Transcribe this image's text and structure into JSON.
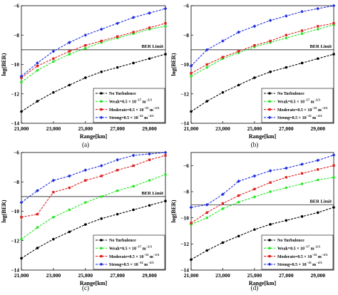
{
  "chart_data": [
    {
      "type": "line",
      "caption": "(a)",
      "xlabel": "Range[km]",
      "ylabel": "log(BER)",
      "xlim": [
        21000,
        30000
      ],
      "ylim": [
        -14,
        -6
      ],
      "xticks": [
        21000,
        23000,
        25000,
        27000,
        29000
      ],
      "xtick_labels": [
        "21,000",
        "23,000",
        "25,000",
        "27,000",
        "29,000"
      ],
      "yticks": [
        -14,
        -12,
        -10,
        -8,
        -6
      ],
      "ytick_labels": [
        "−14",
        "−12",
        "−10",
        "−8",
        "−6"
      ],
      "grid": false,
      "legend_position": "bottom-right",
      "ber_limit": {
        "label": "BER Limit",
        "value": -9
      },
      "x": [
        21000,
        22000,
        23000,
        24000,
        25000,
        26000,
        27000,
        28000,
        29000,
        30000
      ],
      "series": [
        {
          "name": "No Turbulence",
          "legend_text": "No Turbulence",
          "color": "#000000",
          "marker": "circle",
          "values": [
            -13.2,
            -12.5,
            -11.9,
            -11.4,
            -10.9,
            -10.5,
            -10.2,
            -9.9,
            -9.6,
            -9.3
          ]
        },
        {
          "name": "Weak",
          "legend_text": "Weak=0.5 × 10",
          "legend_exp": "−17",
          "legend_unit": " m",
          "legend_unit_exp": "−2/3",
          "color": "#22e822",
          "marker": "circle",
          "values": [
            -11.2,
            -10.4,
            -9.8,
            -9.3,
            -8.9,
            -8.5,
            -8.2,
            -7.9,
            -7.6,
            -7.4
          ]
        },
        {
          "name": "Moderate",
          "legend_text": "Moderate=0.5 × 10",
          "legend_exp": "−15",
          "legend_unit": " m",
          "legend_unit_exp": "−2/3",
          "color": "#e11e1e",
          "marker": "square",
          "values": [
            -10.9,
            -10.1,
            -9.6,
            -9.1,
            -8.7,
            -8.4,
            -8.1,
            -7.8,
            -7.5,
            -7.2
          ]
        },
        {
          "name": "Strong",
          "legend_text": "Strong=0.5 × 10",
          "legend_exp": "−12",
          "legend_unit": " m",
          "legend_unit_exp": "−2/3",
          "color": "#1f2ee0",
          "marker": "diamond",
          "values": [
            -10.8,
            -9.9,
            -9.1,
            -8.5,
            -8.0,
            -7.6,
            -7.2,
            -6.8,
            -6.5,
            -6.2
          ]
        }
      ]
    },
    {
      "type": "line",
      "caption": "(b)",
      "xlabel": "Range[km]",
      "ylabel": "log(BER)",
      "xlim": [
        21000,
        30000
      ],
      "ylim": [
        -14,
        -6
      ],
      "xticks": [
        21000,
        23000,
        25000,
        27000,
        29000
      ],
      "xtick_labels": [
        "21,000",
        "23,000",
        "25,000",
        "27,000",
        "29,000"
      ],
      "yticks": [
        -14,
        -12,
        -10,
        -8,
        -6
      ],
      "ytick_labels": [
        "−14",
        "−12",
        "−10",
        "−8",
        "−6"
      ],
      "grid": false,
      "legend_position": "bottom-right",
      "ber_limit": {
        "label": "BER Limit",
        "value": -9
      },
      "x": [
        21000,
        22000,
        23000,
        24000,
        25000,
        26000,
        27000,
        28000,
        29000,
        30000
      ],
      "series": [
        {
          "name": "No Turbulence",
          "legend_text": "No Turbulence",
          "color": "#000000",
          "marker": "circle",
          "values": [
            -13.2,
            -12.5,
            -11.9,
            -11.4,
            -10.9,
            -10.5,
            -10.2,
            -9.9,
            -9.6,
            -9.3
          ]
        },
        {
          "name": "Weak",
          "legend_text": "Weak=0.5 × 10",
          "legend_exp": "−17",
          "legend_unit": " m",
          "legend_unit_exp": "−2/3",
          "color": "#22e822",
          "marker": "circle",
          "values": [
            -10.8,
            -10.2,
            -9.6,
            -9.2,
            -8.8,
            -8.5,
            -8.2,
            -7.9,
            -7.6,
            -7.3
          ]
        },
        {
          "name": "Moderate",
          "legend_text": "Moderate=0.5 × 10",
          "legend_exp": "−15",
          "legend_unit": " m",
          "legend_unit_exp": "−2/3",
          "color": "#e11e1e",
          "marker": "square",
          "values": [
            -10.6,
            -10.0,
            -9.5,
            -9.1,
            -8.7,
            -8.4,
            -8.0,
            -7.7,
            -7.4,
            -7.2
          ]
        },
        {
          "name": "Strong",
          "legend_text": "Strong=0.5 × 10",
          "legend_exp": "−12",
          "legend_unit": " m",
          "legend_unit_exp": "−2/3",
          "color": "#1f2ee0",
          "marker": "diamond",
          "values": [
            -10.1,
            -9.0,
            -8.4,
            -7.8,
            -7.4,
            -7.0,
            -6.7,
            -6.4,
            -6.2,
            -6.0
          ]
        }
      ]
    },
    {
      "type": "line",
      "caption": "(c)",
      "xlabel": "Range[km]",
      "ylabel": "log(BER)",
      "xlim": [
        21000,
        30000
      ],
      "ylim": [
        -14,
        -6
      ],
      "xticks": [
        21000,
        23000,
        25000,
        27000,
        29000
      ],
      "xtick_labels": [
        "21,000",
        "23,000",
        "25,000",
        "27,000",
        "29,000"
      ],
      "yticks": [
        -14,
        -12,
        -10,
        -8,
        -6
      ],
      "ytick_labels": [
        "−14",
        "−12",
        "−10",
        "−8",
        "−6"
      ],
      "grid": false,
      "legend_position": "bottom-right",
      "ber_limit": {
        "label": "BER Limit",
        "value": -9
      },
      "x": [
        21000,
        22000,
        23000,
        24000,
        25000,
        26000,
        27000,
        28000,
        29000,
        30000
      ],
      "series": [
        {
          "name": "No Turbulence",
          "legend_text": "No Turbulence",
          "color": "#000000",
          "marker": "circle",
          "values": [
            -13.2,
            -12.5,
            -11.9,
            -11.4,
            -10.9,
            -10.5,
            -10.2,
            -9.9,
            -9.6,
            -9.3
          ]
        },
        {
          "name": "Weak",
          "legend_text": "Weak=0.5 × 10",
          "legend_exp": "−17",
          "legend_unit": " m",
          "legend_unit_exp": "−2/3",
          "color": "#22e822",
          "marker": "circle",
          "values": [
            -11.9,
            -11.1,
            -10.4,
            -9.9,
            -9.4,
            -9.0,
            -8.6,
            -8.3,
            -7.9,
            -7.5
          ]
        },
        {
          "name": "Moderate",
          "legend_text": "Moderate=0.5 × 10",
          "legend_exp": "−15",
          "legend_unit": " m",
          "legend_unit_exp": "−2/3",
          "color": "#e11e1e",
          "marker": "square",
          "values": [
            -10.4,
            -10.2,
            -8.7,
            -8.4,
            -7.9,
            -7.6,
            -7.2,
            -6.9,
            -6.5,
            -6.2
          ]
        },
        {
          "name": "Strong",
          "legend_text": "Strong=0.5 × 10",
          "legend_exp": "−12",
          "legend_unit": " m",
          "legend_unit_exp": "−2/3",
          "color": "#1f2ee0",
          "marker": "diamond",
          "values": [
            -9.4,
            -8.6,
            -7.9,
            -7.6,
            -7.2,
            -6.9,
            -6.5,
            -6.2,
            -6.1,
            -6.0
          ]
        }
      ]
    },
    {
      "type": "line",
      "caption": "(d)",
      "xlabel": "Range[km]",
      "ylabel": "log(BER)",
      "xlim": [
        21000,
        30000
      ],
      "ylim": [
        -14,
        -5
      ],
      "xticks": [
        21000,
        23000,
        25000,
        27000,
        29000
      ],
      "xtick_labels": [
        "21,000",
        "23,000",
        "25,000",
        "27,000",
        "29,000"
      ],
      "yticks": [
        -14,
        -12,
        -10,
        -8,
        -6
      ],
      "ytick_labels": [
        "−14",
        "−12",
        "−10",
        "−8",
        "−6"
      ],
      "grid": false,
      "legend_position": "bottom-right",
      "ber_limit": {
        "label": "BER Limit",
        "value": -9
      },
      "x": [
        21000,
        22000,
        23000,
        24000,
        25000,
        26000,
        27000,
        28000,
        29000,
        30000
      ],
      "series": [
        {
          "name": "No Turbulence",
          "legend_text": "No Turbulence",
          "color": "#000000",
          "marker": "circle",
          "values": [
            -13.2,
            -12.5,
            -11.9,
            -11.4,
            -10.9,
            -10.5,
            -10.2,
            -9.9,
            -9.6,
            -9.2
          ]
        },
        {
          "name": "Weak",
          "legend_text": "Weak=0.5 × 10",
          "legend_exp": "−17",
          "legend_unit": " m",
          "legend_unit_exp": "−2/3",
          "color": "#22e822",
          "marker": "circle",
          "values": [
            -10.5,
            -10.0,
            -9.3,
            -8.8,
            -8.4,
            -8.0,
            -7.7,
            -7.4,
            -7.1,
            -6.9
          ]
        },
        {
          "name": "Moderate",
          "legend_text": "Moderate=0.5 × 10",
          "legend_exp": "−15",
          "legend_unit": " m",
          "legend_unit_exp": "−2/3",
          "color": "#e11e1e",
          "marker": "square",
          "values": [
            -10.4,
            -9.6,
            -8.9,
            -8.3,
            -7.8,
            -7.3,
            -6.9,
            -6.6,
            -6.3,
            -6.0
          ]
        },
        {
          "name": "Strong",
          "legend_text": "Strong=0.5 × 10",
          "legend_exp": "−12",
          "legend_unit": " m",
          "legend_unit_exp": "−2/3",
          "color": "#1f2ee0",
          "marker": "diamond",
          "values": [
            -9.2,
            -9.0,
            -8.2,
            -7.2,
            -6.8,
            -6.4,
            -6.2,
            -5.9,
            -5.6,
            -5.2
          ]
        }
      ]
    }
  ]
}
